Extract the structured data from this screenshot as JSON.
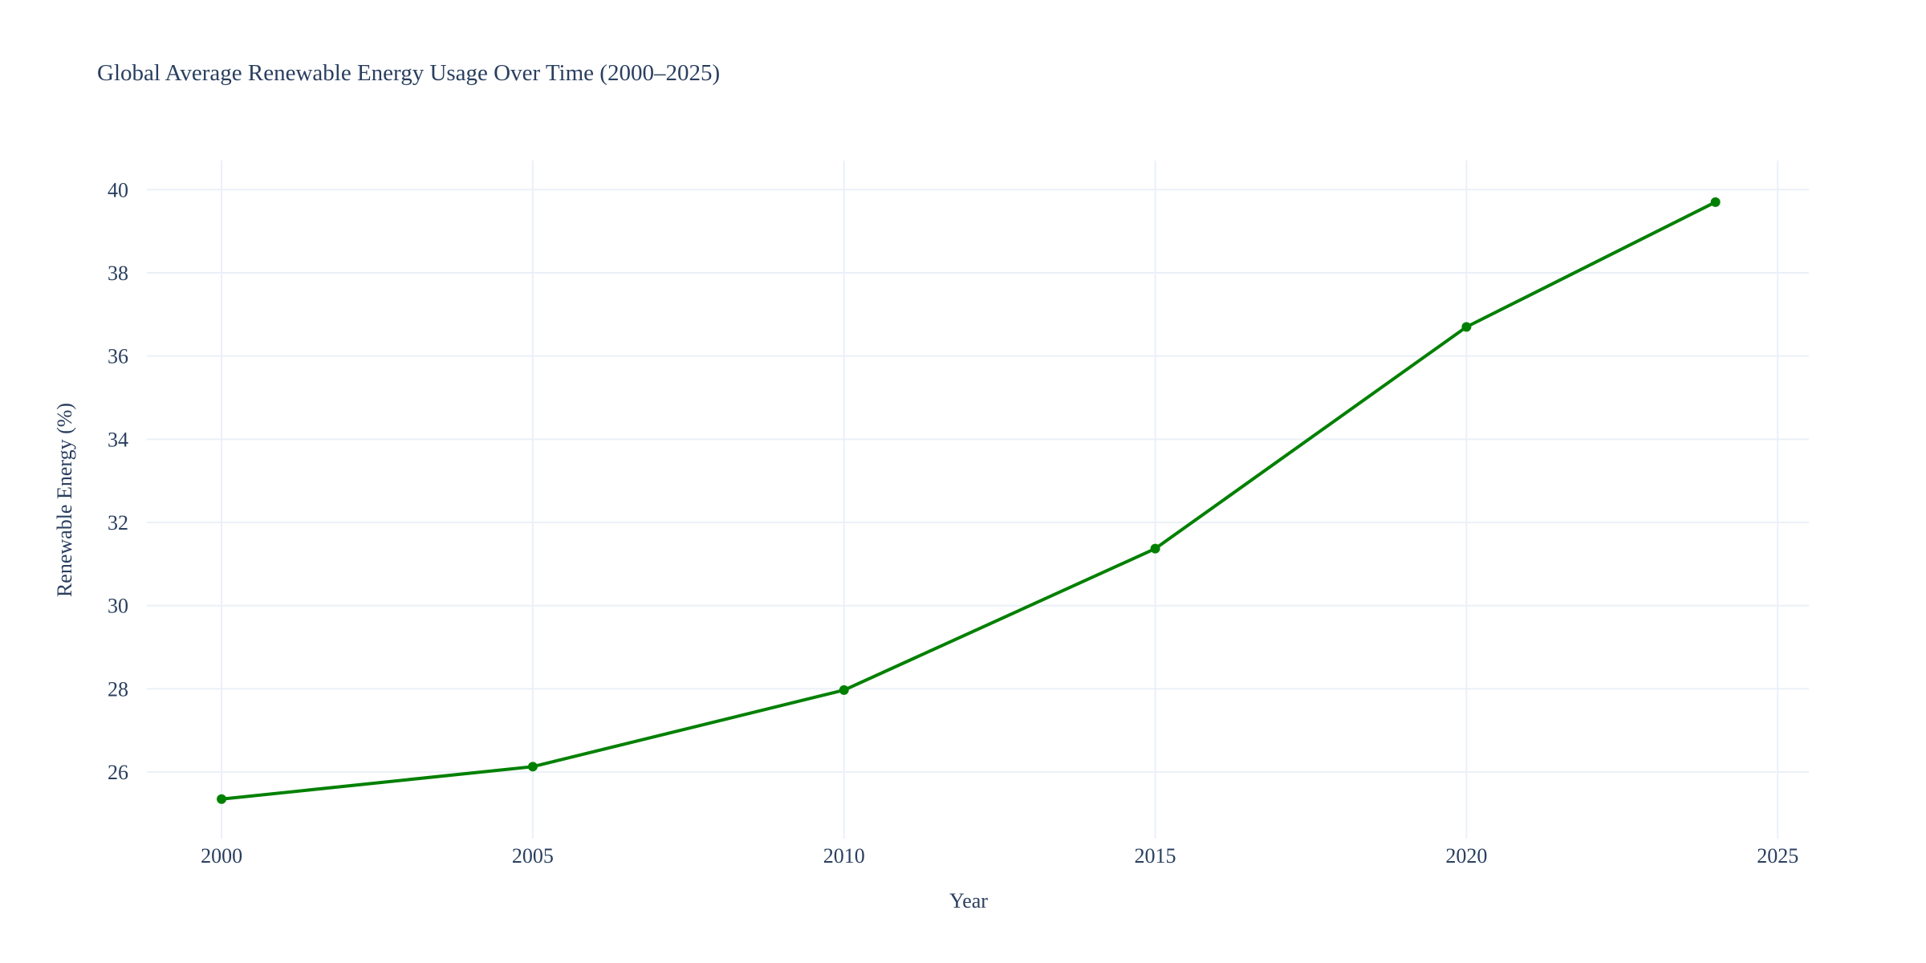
{
  "chart_data": {
    "type": "line",
    "title": "Global Average Renewable Energy Usage Over Time (2000–2025)",
    "xlabel": "Year",
    "ylabel": "Renewable Energy (%)",
    "x": [
      2000,
      2005,
      2010,
      2015,
      2020,
      2024
    ],
    "series": [
      {
        "values": [
          25.35,
          26.13,
          27.97,
          31.37,
          36.7,
          39.7
        ],
        "color": "#008000",
        "marker": "circle"
      }
    ],
    "xticks": [
      2000,
      2005,
      2010,
      2015,
      2020,
      2025
    ],
    "yticks": [
      26,
      28,
      30,
      32,
      34,
      36,
      38,
      40
    ],
    "xlim": [
      1998.8,
      2025.5
    ],
    "ylim": [
      24.4,
      40.7
    ],
    "grid": true,
    "legend": "none"
  }
}
